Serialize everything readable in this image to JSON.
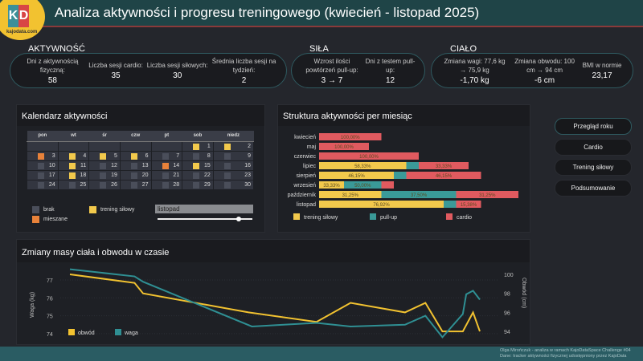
{
  "header": {
    "title": "Analiza aktywności i progresu treningowego (kwiecień - listopad 2025)",
    "logo_text": "KD kajodata.com"
  },
  "kpi": {
    "aktywnosc": {
      "label": "AKTYWNOŚĆ",
      "items": [
        {
          "label": "Dni z aktywnością fizyczną:",
          "value": "58"
        },
        {
          "label": "Liczba sesji cardio:",
          "value": "35"
        },
        {
          "label": "Liczba sesji siłowych:",
          "value": "30"
        },
        {
          "label": "Średnia liczba sesji na tydzień:",
          "value": "2"
        }
      ]
    },
    "sila": {
      "label": "SIŁA",
      "items": [
        {
          "label": "Wzrost ilości powtórzeń pull-up:",
          "value": "3 → 7"
        },
        {
          "label": "Dni z testem pull-up:",
          "value": "12"
        }
      ]
    },
    "cialo": {
      "label": "CIAŁO",
      "items": [
        {
          "label": "Zmiana wagi: 77,6 kg → 75,9 kg",
          "value": "-1,70 kg"
        },
        {
          "label": "Zmiana obwodu: 100 cm → 94 cm",
          "value": "-6 cm"
        },
        {
          "label": "BMI w normie",
          "value": "23,17"
        }
      ]
    }
  },
  "calendar": {
    "title": "Kalendarz aktywności",
    "weekdays": [
      "pon",
      "wt",
      "śr",
      "czw",
      "pt",
      "sob",
      "niedz"
    ],
    "first_weekday_index": 5,
    "days": 30,
    "colors": {
      "brak": "#4a4e5a",
      "trening": "#f2c94c",
      "mieszane": "#e8823a"
    },
    "strength_days": [
      1,
      2,
      4,
      5,
      6,
      11,
      15,
      18
    ],
    "mixed_days": [
      3,
      14
    ],
    "legend": {
      "brak": "brak",
      "trening": "trening siłowy",
      "mieszane": "mieszane"
    },
    "month_select": "listopad",
    "slider_value": 7,
    "slider_max": 8
  },
  "chart_data": [
    {
      "type": "bar",
      "stacked": true,
      "orientation": "horizontal",
      "title": "Struktura aktywności per miesiąc",
      "categories": [
        "kwiecień",
        "maj",
        "czerwiec",
        "lipiec",
        "sierpień",
        "wrzesień",
        "październik",
        "listopad"
      ],
      "series": [
        {
          "name": "trening siłowy",
          "color": "#f2c94c",
          "values": [
            0,
            0,
            0,
            7,
            6,
            2,
            5,
            10
          ],
          "labels": [
            "",
            "",
            "",
            "58,33%",
            "46,15%",
            "33,33%",
            "31,25%",
            "76,92%"
          ]
        },
        {
          "name": "pull-up",
          "color": "#3a9a98",
          "values": [
            0,
            0,
            0,
            1,
            1,
            3,
            6,
            1
          ],
          "labels": [
            "",
            "",
            "",
            "",
            "",
            "50,00%",
            "37,50%",
            ""
          ]
        },
        {
          "name": "cardio",
          "color": "#e05a5f",
          "values": [
            5,
            4,
            8,
            4,
            6,
            1,
            5,
            2
          ],
          "labels": [
            "100,00%",
            "100,00%",
            "100,00%",
            "33,33%",
            "46,15%",
            "",
            "31,25%",
            "15,38%"
          ]
        }
      ],
      "legend": "bottom"
    },
    {
      "type": "line",
      "title": "Zmiany masy ciała i obwodu w czasie",
      "ylabel": "Waga (kg)",
      "y2label": "Obwód (cm)",
      "ylim": [
        73.7,
        77.8
      ],
      "y2lim": [
        93.6,
        101
      ],
      "yticks": [
        74,
        75,
        76,
        77
      ],
      "y2ticks": [
        94,
        96,
        98,
        100
      ],
      "legend": "bottom-left",
      "series": [
        {
          "name": "obwód",
          "axis": "right",
          "color": "#f2c230",
          "points": [
            [
              "2025-04-01",
              100
            ],
            [
              "2025-05-09",
              99.1
            ],
            [
              "2025-05-14",
              98
            ],
            [
              "2025-07-15",
              96
            ],
            [
              "2025-08-24",
              95
            ],
            [
              "2025-09-13",
              97
            ],
            [
              "2025-10-15",
              96
            ],
            [
              "2025-10-27",
              97
            ],
            [
              "2025-11-06",
              94
            ],
            [
              "2025-11-18",
              94
            ],
            [
              "2025-11-24",
              96
            ],
            [
              "2025-11-28",
              94
            ]
          ]
        },
        {
          "name": "waga",
          "axis": "left",
          "color": "#2f8f93",
          "points": [
            [
              "2025-04-01",
              77.6
            ],
            [
              "2025-05-09",
              77.2
            ],
            [
              "2025-05-14",
              76.9
            ],
            [
              "2025-07-17",
              74.4
            ],
            [
              "2025-08-24",
              74.6
            ],
            [
              "2025-09-13",
              74.4
            ],
            [
              "2025-10-15",
              74.5
            ],
            [
              "2025-10-27",
              75.0
            ],
            [
              "2025-11-06",
              73.8
            ],
            [
              "2025-11-18",
              75.1
            ],
            [
              "2025-11-20",
              76.2
            ],
            [
              "2025-11-24",
              76.4
            ],
            [
              "2025-11-28",
              75.9
            ]
          ]
        }
      ]
    }
  ],
  "nav": {
    "buttons": [
      "Przegląd roku",
      "Cardio",
      "Trening siłowy",
      "Podsumowanie"
    ]
  },
  "footer": {
    "line1": "Olga Mirończuk - analiza w ramach KajoDataSpace Challenge #04",
    "line2": "Dane: tracker aktywności fizycznej udostępniony przez KajoData"
  }
}
